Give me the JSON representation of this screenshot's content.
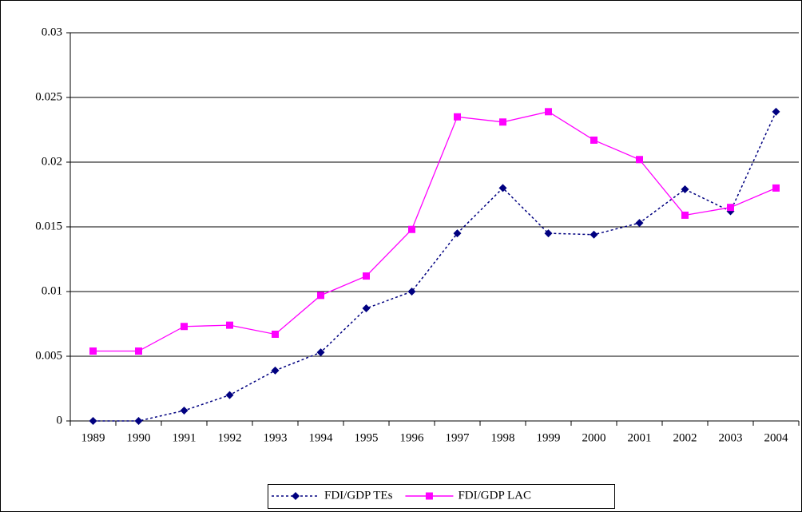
{
  "chart_data": {
    "type": "line",
    "categories": [
      "1989",
      "1990",
      "1991",
      "1992",
      "1993",
      "1994",
      "1995",
      "1996",
      "1997",
      "1998",
      "1999",
      "2000",
      "2001",
      "2002",
      "2003",
      "2004"
    ],
    "series": [
      {
        "name": "FDI/GDP TEs",
        "color": "#000080",
        "dash": "dotted",
        "marker": "diamond",
        "values": [
          0,
          0,
          0.0008,
          0.002,
          0.0039,
          0.0053,
          0.0087,
          0.01,
          0.0145,
          0.018,
          0.0145,
          0.0144,
          0.0153,
          0.0179,
          0.0162,
          0.0239
        ]
      },
      {
        "name": "FDI/GDP LAC",
        "color": "#ff00ff",
        "dash": "solid",
        "marker": "square",
        "values": [
          0.0054,
          0.0054,
          0.0073,
          0.0074,
          0.0067,
          0.0097,
          0.0112,
          0.0148,
          0.0235,
          0.0231,
          0.0239,
          0.0217,
          0.0202,
          0.0159,
          0.0165,
          0.018
        ]
      }
    ],
    "ylim": [
      0,
      0.03
    ],
    "yticks": [
      0,
      0.005,
      0.01,
      0.015,
      0.02,
      0.025,
      0.03
    ],
    "grid": true,
    "legend": "bottom"
  }
}
